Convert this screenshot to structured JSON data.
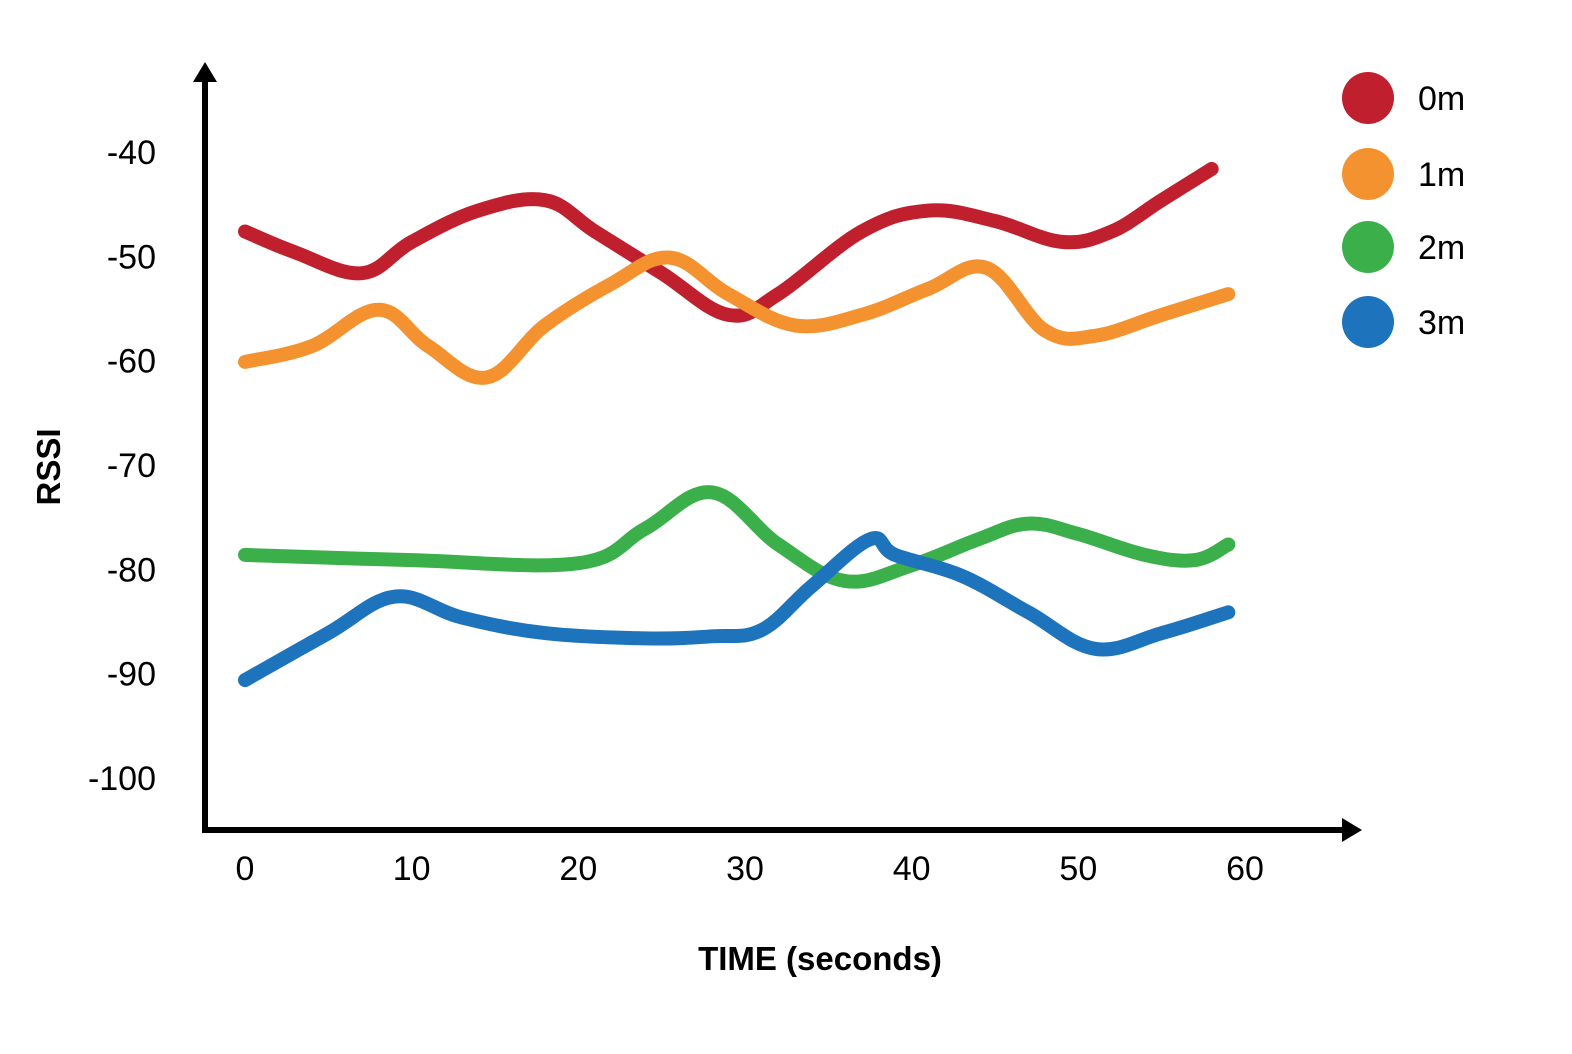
{
  "chart_data": {
    "type": "line",
    "title": "",
    "xlabel": "TIME (seconds)",
    "ylabel": "RSSI",
    "xlim": [
      0,
      60
    ],
    "ylim": [
      -100,
      -40
    ],
    "x_ticks": [
      "0",
      "10",
      "20",
      "30",
      "40",
      "50",
      "60"
    ],
    "y_ticks": [
      "-40",
      "-50",
      "-60",
      "-70",
      "-80",
      "-90",
      "-100"
    ],
    "grid": false,
    "legend_position": "top-right",
    "series": [
      {
        "name": "0m",
        "color": "#c0202e",
        "points": [
          [
            0,
            -48
          ],
          [
            3,
            -50
          ],
          [
            7,
            -52
          ],
          [
            10,
            -49
          ],
          [
            14,
            -46
          ],
          [
            18,
            -45
          ],
          [
            21,
            -48
          ],
          [
            25,
            -52
          ],
          [
            29,
            -56
          ],
          [
            32,
            -54
          ],
          [
            37,
            -48
          ],
          [
            41,
            -46
          ],
          [
            45,
            -47
          ],
          [
            49,
            -49
          ],
          [
            52,
            -48
          ],
          [
            55,
            -45
          ],
          [
            58,
            -42
          ]
        ]
      },
      {
        "name": "1m",
        "color": "#f4922f",
        "points": [
          [
            0,
            -60.5
          ],
          [
            4,
            -59
          ],
          [
            8,
            -55.5
          ],
          [
            11,
            -59
          ],
          [
            14.5,
            -62
          ],
          [
            18,
            -57
          ],
          [
            22,
            -53
          ],
          [
            25.5,
            -50.5
          ],
          [
            29,
            -54
          ],
          [
            33,
            -57
          ],
          [
            37,
            -56
          ],
          [
            41,
            -53.5
          ],
          [
            44.5,
            -51.5
          ],
          [
            48,
            -57.5
          ],
          [
            51,
            -58
          ],
          [
            55,
            -56
          ],
          [
            59,
            -54
          ]
        ]
      },
      {
        "name": "2m",
        "color": "#3bb04a",
        "points": [
          [
            0,
            -79
          ],
          [
            10,
            -79.5
          ],
          [
            20,
            -79.8
          ],
          [
            24,
            -76.5
          ],
          [
            28,
            -73
          ],
          [
            32,
            -78
          ],
          [
            36,
            -81.5
          ],
          [
            40,
            -80
          ],
          [
            44,
            -77.5
          ],
          [
            47,
            -76
          ],
          [
            50,
            -77
          ],
          [
            54,
            -79
          ],
          [
            57,
            -79.5
          ],
          [
            59,
            -78
          ]
        ]
      },
      {
        "name": "3m",
        "color": "#1e74bc",
        "points": [
          [
            0,
            -91
          ],
          [
            5,
            -86.5
          ],
          [
            9,
            -83
          ],
          [
            13,
            -85
          ],
          [
            18,
            -86.5
          ],
          [
            24,
            -87
          ],
          [
            28,
            -86.8
          ],
          [
            31,
            -86.2
          ],
          [
            34,
            -82
          ],
          [
            37.5,
            -77.5
          ],
          [
            39,
            -79
          ],
          [
            43,
            -81
          ],
          [
            47,
            -84.5
          ],
          [
            51,
            -88
          ],
          [
            55,
            -86.5
          ],
          [
            59,
            -84.5
          ]
        ]
      }
    ]
  }
}
